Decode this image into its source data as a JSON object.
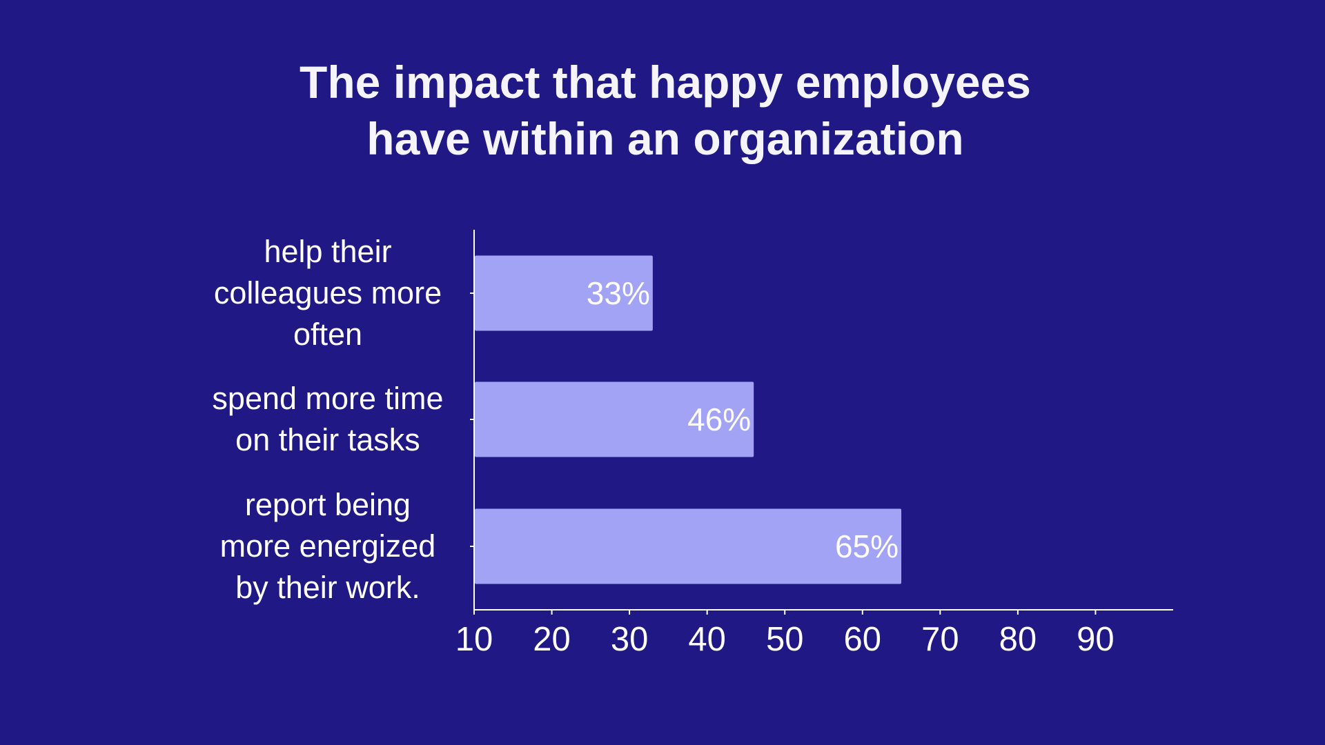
{
  "chart_data": {
    "type": "bar",
    "orientation": "horizontal",
    "title": [
      "The impact that happy employees",
      "have within an organization"
    ],
    "categories": [
      [
        "help their",
        "colleagues more",
        "often"
      ],
      [
        "spend more time",
        "on their tasks"
      ],
      [
        "report being",
        "more energized",
        "by their work."
      ]
    ],
    "values": [
      33,
      46,
      65
    ],
    "data_labels": [
      "33%",
      "46%",
      "65%"
    ],
    "xlim": [
      10,
      100
    ],
    "xticks": [
      10,
      20,
      30,
      40,
      50,
      60,
      70,
      80,
      90
    ],
    "xlabel": "",
    "ylabel": "",
    "grid": false,
    "colors": {
      "background": "#201985",
      "bar": "#a3a3f5",
      "text": "#ffffff"
    }
  }
}
